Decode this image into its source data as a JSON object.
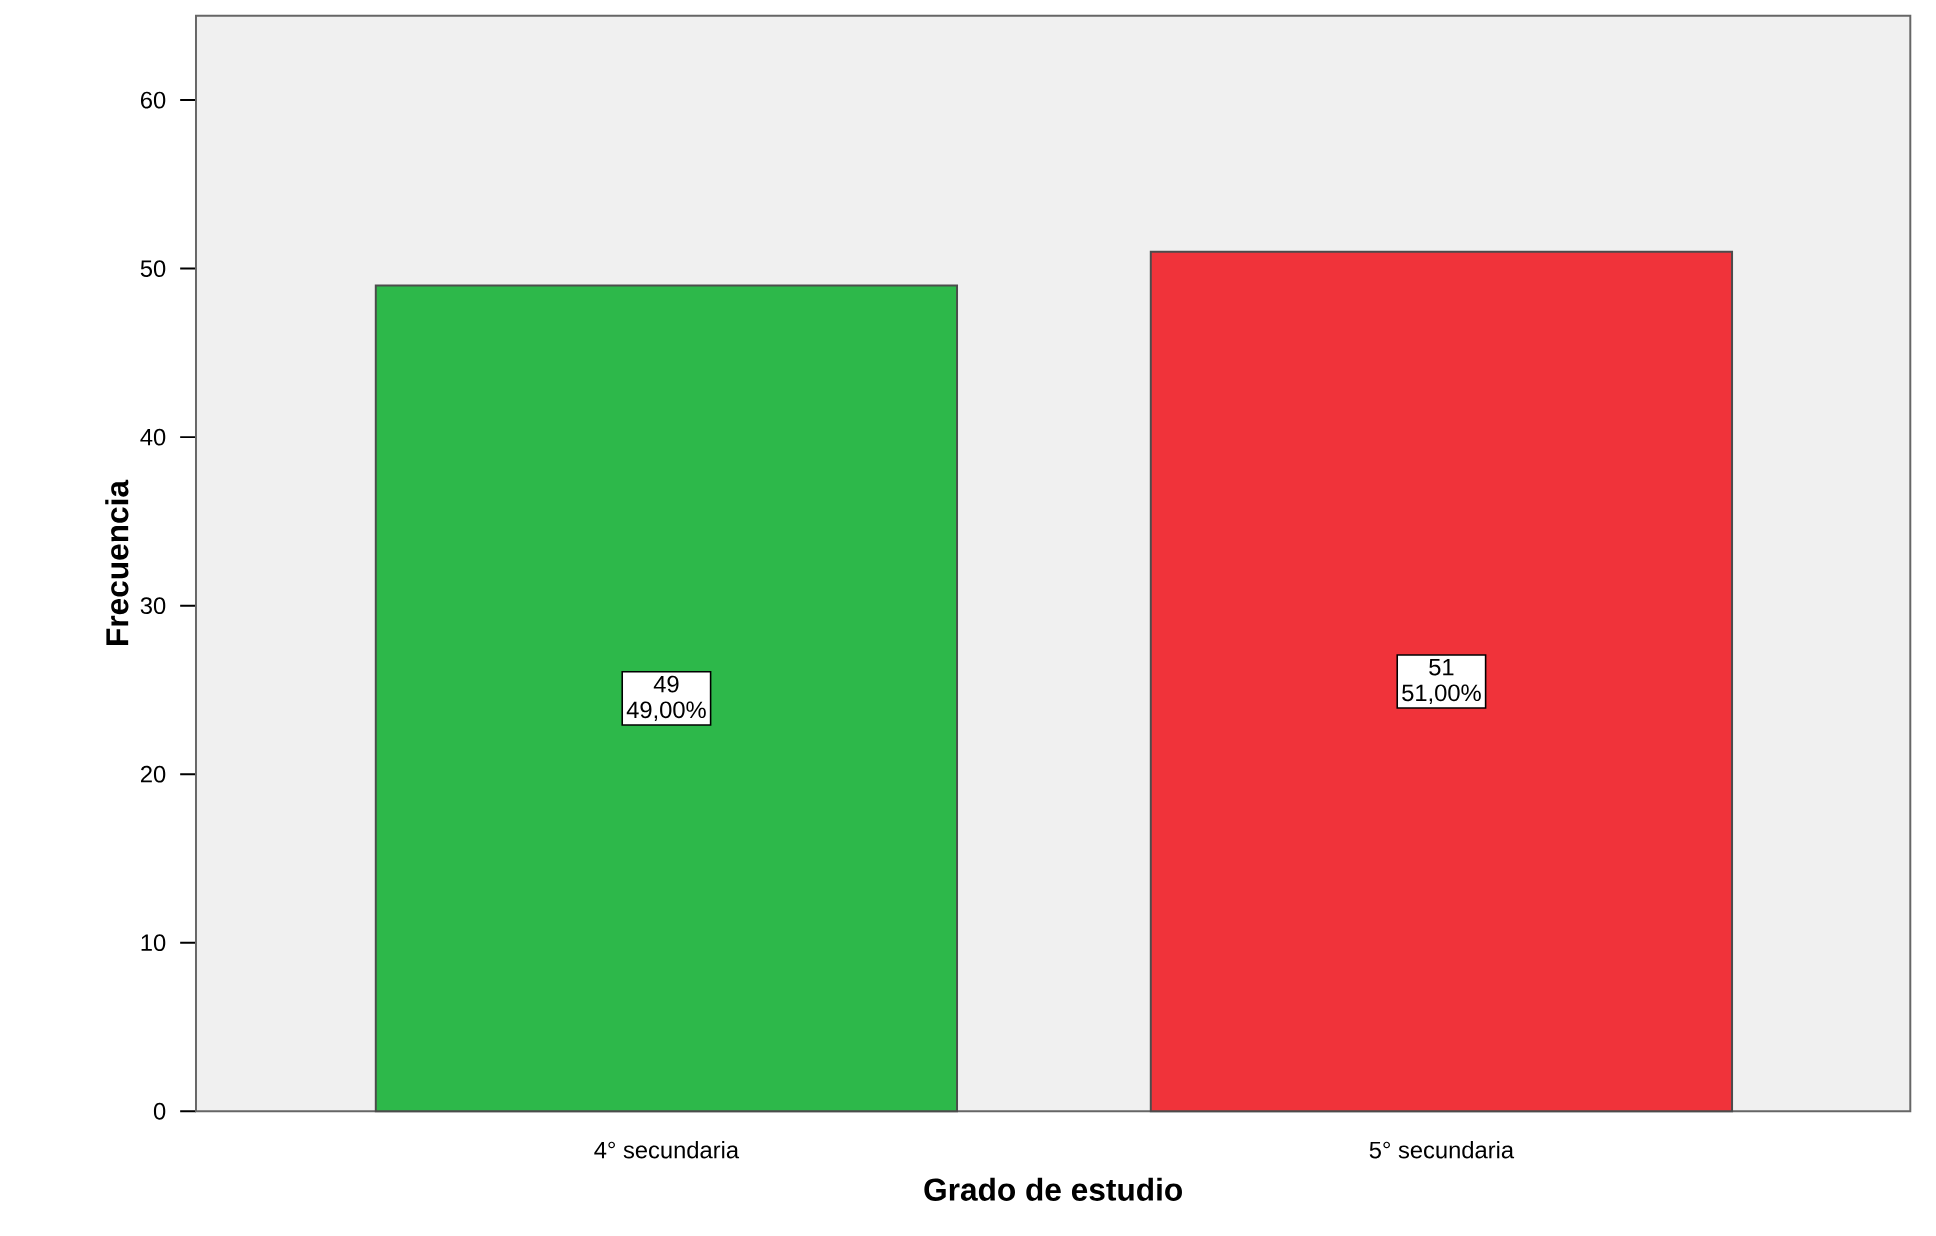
{
  "chart_data": {
    "type": "bar",
    "xlabel": "Grado de estudio",
    "ylabel": "Frecuencia",
    "categories": [
      "4° secundaria",
      "5° secundaria"
    ],
    "values": [
      49,
      51
    ],
    "colors": [
      "#2db84a",
      "#f0333a"
    ],
    "value_labels": [
      "49",
      "51"
    ],
    "annotations": [
      "49,00%",
      "51,00%"
    ],
    "ylim": [
      0,
      65
    ],
    "yticks": [
      0,
      10,
      20,
      30,
      40,
      50,
      60
    ],
    "grid": false
  }
}
